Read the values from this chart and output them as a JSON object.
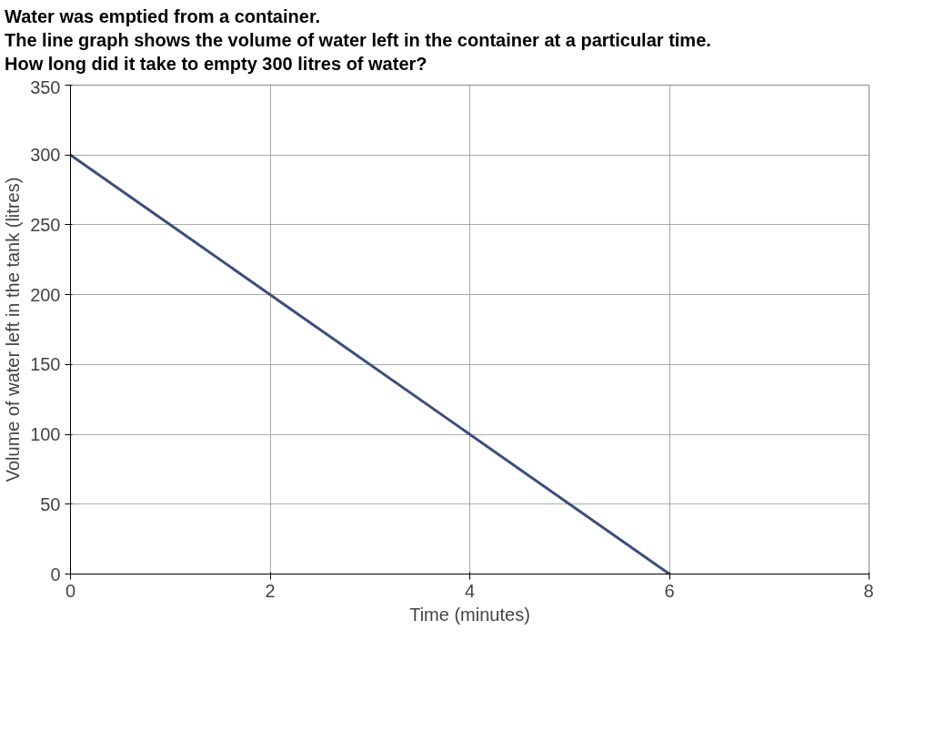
{
  "chart_data": {
    "type": "line",
    "title": "Water was emptied from a container.",
    "subtitle": "The line graph shows the volume of water left in the container at a particular time.",
    "annotations": [
      "How long did it take to empty 300 litres of water?"
    ],
    "xlabel": "Time (minutes)",
    "ylabel": "Volume of water left in the tank (litres)",
    "x": [
      0,
      6
    ],
    "series": [
      {
        "color": "#3b4f7a",
        "values": [
          300,
          0
        ]
      }
    ],
    "xlim": [
      0,
      8
    ],
    "ylim": [
      0,
      350
    ],
    "xticks": [
      0,
      2,
      4,
      6,
      8
    ],
    "yticks": [
      0,
      50,
      100,
      150,
      200,
      250,
      300,
      350
    ],
    "grid": true,
    "marker": "none",
    "line_style": "solid"
  }
}
